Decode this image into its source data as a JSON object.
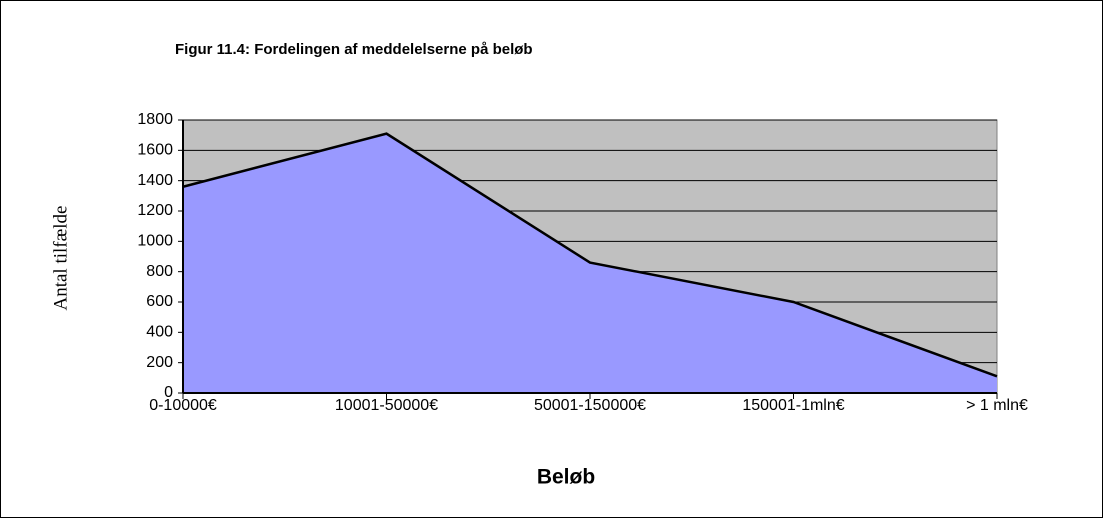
{
  "chart_data": {
    "type": "area",
    "title": "Figur 11.4: Fordelingen af meddelelserne på beløb",
    "x_label": "Beløb",
    "y_label": "Antal tilfælde",
    "categories": [
      "0-10000€",
      "10001-50000€",
      "50001-150000€",
      "150001-1mln€",
      "> 1 mln€"
    ],
    "values": [
      1360,
      1710,
      860,
      600,
      110
    ],
    "color": "#9999ff",
    "line_color": "#000000",
    "plot_background": "#c0c0c0",
    "ylim": [
      0,
      1800
    ],
    "yticks": [
      0,
      200,
      400,
      600,
      800,
      1000,
      1200,
      1400,
      1600,
      1800
    ],
    "grid": true
  }
}
